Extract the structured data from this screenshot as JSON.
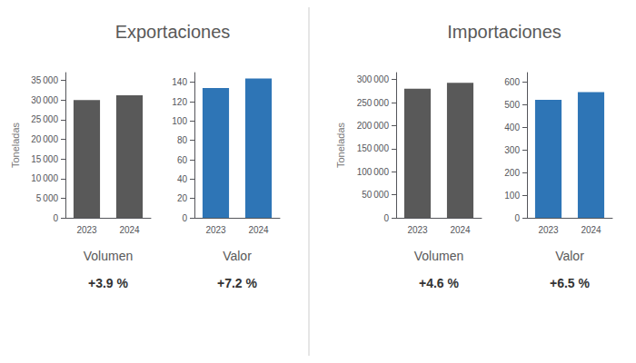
{
  "chart_data": [
    {
      "type": "bar",
      "title": "Volumen",
      "subtitle": "+3.9 %",
      "ylabel": "Toneladas",
      "annotations": [
        "Exportaciones"
      ],
      "categories": [
        "2023",
        "2024"
      ],
      "values": [
        30000,
        31200
      ],
      "color": "#595959",
      "ylim": [
        0,
        37000
      ],
      "yticks": [
        0,
        {
          "value": 5000,
          "label": "5 000"
        },
        {
          "value": 10000,
          "label": "10 000"
        },
        {
          "value": 15000,
          "label": "15 000"
        },
        {
          "value": 20000,
          "label": "20 000"
        },
        {
          "value": 25000,
          "label": "25 000"
        },
        {
          "value": 30000,
          "label": "30 000"
        },
        {
          "value": 35000,
          "label": "35 000"
        }
      ],
      "grid": false
    },
    {
      "type": "bar",
      "title": "Valor",
      "subtitle": "+7.2 %",
      "categories": [
        "2023",
        "2024"
      ],
      "values": [
        134,
        144
      ],
      "color": "#2e75b6",
      "ylim": [
        0,
        150
      ],
      "yticks": [
        0,
        20,
        40,
        60,
        80,
        100,
        120,
        140
      ],
      "grid": false
    },
    {
      "type": "bar",
      "title": "Volumen",
      "subtitle": "+4.6 %",
      "ylabel": "Toneladas",
      "annotations": [
        "Importaciones"
      ],
      "categories": [
        "2023",
        "2024"
      ],
      "values": [
        280000,
        293000
      ],
      "color": "#595959",
      "ylim": [
        0,
        315000
      ],
      "yticks": [
        0,
        {
          "value": 50000,
          "label": "50 000"
        },
        {
          "value": 100000,
          "label": "100 000"
        },
        {
          "value": 150000,
          "label": "150 000"
        },
        {
          "value": 200000,
          "label": "200 000"
        },
        {
          "value": 250000,
          "label": "250 000"
        },
        {
          "value": 300000,
          "label": "300 000"
        }
      ],
      "grid": false
    },
    {
      "type": "bar",
      "title": "Valor",
      "subtitle": "+6.5 %",
      "categories": [
        "2023",
        "2024"
      ],
      "values": [
        520,
        554
      ],
      "color": "#2e75b6",
      "ylim": [
        0,
        640
      ],
      "yticks": [
        0,
        100,
        200,
        300,
        400,
        500,
        600
      ],
      "grid": false
    }
  ]
}
